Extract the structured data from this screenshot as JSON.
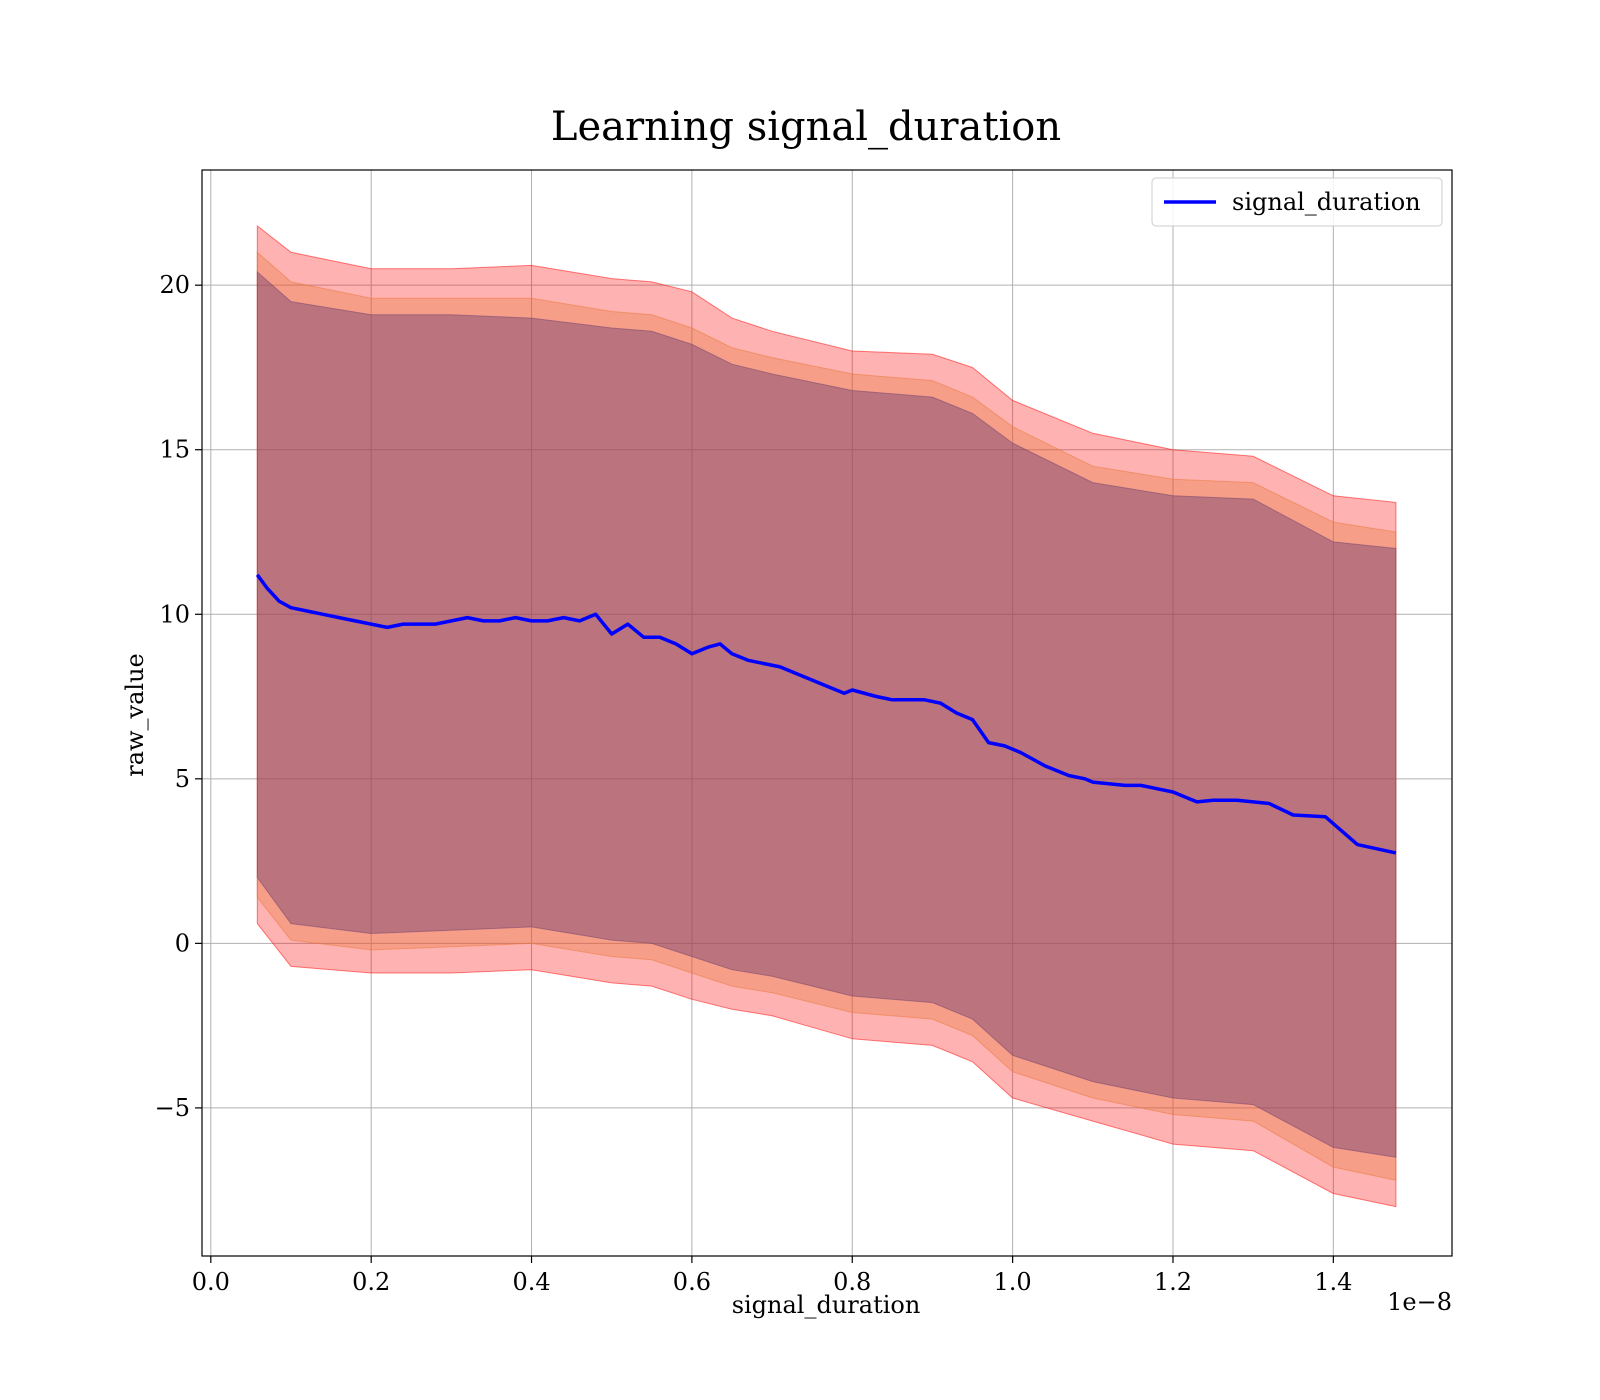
{
  "chart_data": {
    "type": "area",
    "title": "Learning signal_duration",
    "xlabel": "signal_duration",
    "ylabel": "raw_value",
    "x_offset_label": "1e−8",
    "xlim": [
      -0.011,
      1.548
    ],
    "ylim": [
      -9.5,
      23.5
    ],
    "x_ticks": [
      0.0,
      0.2,
      0.4,
      0.6,
      0.8,
      1.0,
      1.2,
      1.4
    ],
    "x_tick_labels": [
      "0.0",
      "0.2",
      "0.4",
      "0.6",
      "0.8",
      "1.0",
      "1.2",
      "1.4"
    ],
    "y_ticks": [
      -5,
      0,
      5,
      10,
      15,
      20
    ],
    "y_tick_labels": [
      "−5",
      "0",
      "5",
      "10",
      "15",
      "20"
    ],
    "grid": true,
    "legend_position": "top-right",
    "series": [
      {
        "name": "signal_duration",
        "color": "#0000ff",
        "x": [
          0.058,
          0.07,
          0.085,
          0.1,
          0.12,
          0.14,
          0.16,
          0.18,
          0.2,
          0.22,
          0.24,
          0.26,
          0.28,
          0.3,
          0.32,
          0.34,
          0.36,
          0.38,
          0.4,
          0.42,
          0.44,
          0.46,
          0.48,
          0.5,
          0.52,
          0.54,
          0.56,
          0.58,
          0.6,
          0.61,
          0.62,
          0.635,
          0.65,
          0.67,
          0.69,
          0.71,
          0.73,
          0.75,
          0.77,
          0.79,
          0.8,
          0.83,
          0.85,
          0.87,
          0.89,
          0.91,
          0.93,
          0.95,
          0.97,
          0.99,
          1.01,
          1.04,
          1.07,
          1.09,
          1.1,
          1.12,
          1.14,
          1.16,
          1.18,
          1.2,
          1.22,
          1.23,
          1.25,
          1.28,
          1.32,
          1.35,
          1.39,
          1.43,
          1.478
        ],
        "y": [
          11.2,
          10.8,
          10.4,
          10.2,
          10.1,
          10.0,
          9.9,
          9.8,
          9.7,
          9.6,
          9.7,
          9.7,
          9.7,
          9.8,
          9.9,
          9.8,
          9.8,
          9.9,
          9.8,
          9.8,
          9.9,
          9.8,
          10.0,
          9.4,
          9.7,
          9.3,
          9.3,
          9.1,
          8.8,
          8.9,
          9.0,
          9.1,
          8.8,
          8.6,
          8.5,
          8.4,
          8.2,
          8.0,
          7.8,
          7.6,
          7.7,
          7.5,
          7.4,
          7.4,
          7.4,
          7.3,
          7.0,
          6.8,
          6.1,
          6.0,
          5.8,
          5.4,
          5.1,
          5.0,
          4.9,
          4.85,
          4.8,
          4.8,
          4.7,
          4.6,
          4.4,
          4.3,
          4.35,
          4.35,
          4.25,
          3.9,
          3.85,
          3.0,
          2.75
        ]
      }
    ],
    "bands": [
      {
        "color": "#ff0000",
        "opacity": 0.3,
        "x": [
          0.058,
          0.1,
          0.2,
          0.3,
          0.4,
          0.5,
          0.55,
          0.6,
          0.65,
          0.7,
          0.8,
          0.9,
          0.95,
          1.0,
          1.1,
          1.2,
          1.3,
          1.4,
          1.478
        ],
        "upper": [
          21.8,
          21.0,
          20.5,
          20.5,
          20.6,
          20.2,
          20.1,
          19.8,
          19.0,
          18.6,
          18.0,
          17.9,
          17.5,
          16.5,
          15.5,
          15.0,
          14.8,
          13.6,
          13.4
        ],
        "lower": [
          0.6,
          -0.7,
          -0.9,
          -0.9,
          -0.8,
          -1.2,
          -1.3,
          -1.7,
          -2.0,
          -2.2,
          -2.9,
          -3.1,
          -3.6,
          -4.7,
          -5.4,
          -6.1,
          -6.3,
          -7.6,
          -8.0
        ]
      },
      {
        "color": "#e87838",
        "opacity": 0.35,
        "x": [
          0.058,
          0.1,
          0.2,
          0.3,
          0.4,
          0.5,
          0.55,
          0.6,
          0.65,
          0.7,
          0.8,
          0.9,
          0.95,
          1.0,
          1.1,
          1.2,
          1.3,
          1.4,
          1.478
        ],
        "upper": [
          21.0,
          20.1,
          19.6,
          19.6,
          19.6,
          19.2,
          19.1,
          18.7,
          18.1,
          17.8,
          17.3,
          17.1,
          16.6,
          15.7,
          14.5,
          14.1,
          14.0,
          12.8,
          12.5
        ],
        "lower": [
          1.4,
          0.1,
          -0.2,
          -0.1,
          0.0,
          -0.4,
          -0.5,
          -0.9,
          -1.3,
          -1.5,
          -2.1,
          -2.3,
          -2.8,
          -3.9,
          -4.7,
          -5.2,
          -5.4,
          -6.8,
          -7.2
        ]
      },
      {
        "color": "#704070",
        "opacity": 0.45,
        "x": [
          0.058,
          0.1,
          0.2,
          0.3,
          0.4,
          0.5,
          0.55,
          0.6,
          0.65,
          0.7,
          0.8,
          0.9,
          0.95,
          1.0,
          1.1,
          1.2,
          1.3,
          1.4,
          1.478
        ],
        "upper": [
          20.4,
          19.5,
          19.1,
          19.1,
          19.0,
          18.7,
          18.6,
          18.2,
          17.6,
          17.3,
          16.8,
          16.6,
          16.1,
          15.2,
          14.0,
          13.6,
          13.5,
          12.2,
          12.0
        ],
        "lower": [
          2.0,
          0.6,
          0.3,
          0.4,
          0.5,
          0.1,
          0.0,
          -0.4,
          -0.8,
          -1.0,
          -1.6,
          -1.8,
          -2.3,
          -3.4,
          -4.2,
          -4.7,
          -4.9,
          -6.2,
          -6.5
        ]
      }
    ]
  }
}
